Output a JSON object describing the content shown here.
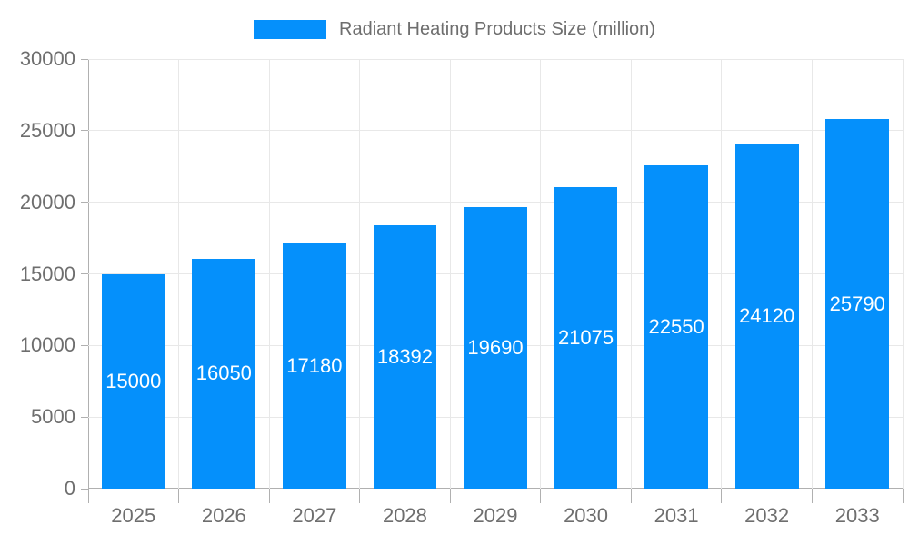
{
  "legend": {
    "label": "Radiant Heating Products Size (million)",
    "swatch_color": "#0590FB"
  },
  "chart_data": {
    "type": "bar",
    "categories": [
      "2025",
      "2026",
      "2027",
      "2028",
      "2029",
      "2030",
      "2031",
      "2032",
      "2033"
    ],
    "values": [
      15000,
      16050,
      17180,
      18392,
      19690,
      21075,
      22550,
      24120,
      25790
    ],
    "title": "Radiant Heating Products Size (million)",
    "xlabel": "",
    "ylabel": "",
    "ylim": [
      0,
      30000
    ],
    "yticks": [
      0,
      5000,
      10000,
      15000,
      20000,
      25000,
      30000
    ],
    "grid": true,
    "legend_position": "top",
    "bar_color": "#0590FB",
    "value_label_color": "#ffffff",
    "axis_label_color": "#6e6e6e",
    "grid_color": "#e8e8e8",
    "axis_line_color": "#b0b0b0"
  }
}
